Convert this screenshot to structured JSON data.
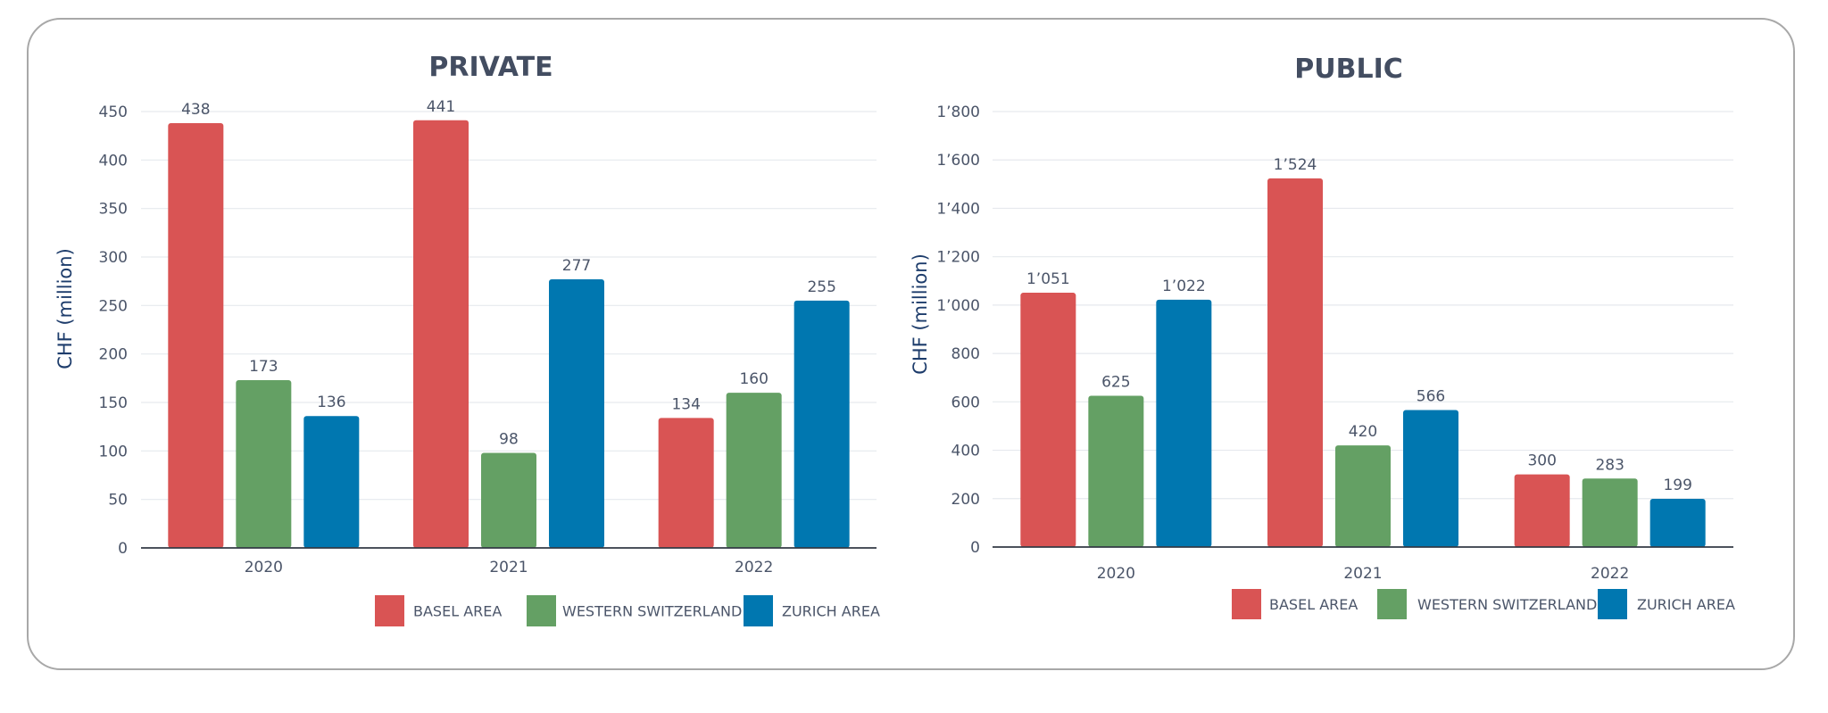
{
  "colors": {
    "basel_area": "#d95454",
    "western_switzerland": "#64a064",
    "zurich_area": "#0077b0"
  },
  "chart_data": [
    {
      "type": "bar",
      "title": "PRIVATE",
      "xlabel": "",
      "ylabel": "CHF (million)",
      "categories": [
        "2020",
        "2021",
        "2022"
      ],
      "ylim": [
        0,
        450
      ],
      "yticks": [
        0,
        50,
        100,
        150,
        200,
        250,
        300,
        350,
        400,
        450
      ],
      "ytick_labels": [
        "0",
        "50",
        "100",
        "150",
        "200",
        "250",
        "300",
        "350",
        "400",
        "450"
      ],
      "grid": true,
      "legend_position": "bottom-right",
      "series": [
        {
          "name": "BASEL AREA",
          "color": "#d95454",
          "values": [
            438,
            441,
            134
          ],
          "labels": [
            "438",
            "441",
            "134"
          ]
        },
        {
          "name": "WESTERN SWITZERLAND",
          "color": "#64a064",
          "values": [
            173,
            98,
            160
          ],
          "labels": [
            "173",
            "98",
            "160"
          ]
        },
        {
          "name": "ZURICH AREA",
          "color": "#0077b0",
          "values": [
            136,
            277,
            255
          ],
          "labels": [
            "136",
            "277",
            "255"
          ]
        }
      ]
    },
    {
      "type": "bar",
      "title": "PUBLIC",
      "xlabel": "",
      "ylabel": "CHF (million)",
      "categories": [
        "2020",
        "2021",
        "2022"
      ],
      "ylim": [
        0,
        1800
      ],
      "yticks": [
        0,
        200,
        400,
        600,
        800,
        1000,
        1200,
        1400,
        1600,
        1800
      ],
      "ytick_labels": [
        "0",
        "200",
        "400",
        "600",
        "800",
        "1’000",
        "1’200",
        "1’400",
        "1’600",
        "1’800"
      ],
      "grid": true,
      "legend_position": "bottom-right",
      "series": [
        {
          "name": "BASEL AREA",
          "color": "#d95454",
          "values": [
            1051,
            1524,
            300
          ],
          "labels": [
            "1’051",
            "1’524",
            "300"
          ]
        },
        {
          "name": "WESTERN SWITZERLAND",
          "color": "#64a064",
          "values": [
            625,
            420,
            283
          ],
          "labels": [
            "625",
            "420",
            "283"
          ]
        },
        {
          "name": "ZURICH AREA",
          "color": "#0077b0",
          "values": [
            1022,
            566,
            199
          ],
          "labels": [
            "1’022",
            "566",
            "199"
          ]
        }
      ]
    }
  ]
}
